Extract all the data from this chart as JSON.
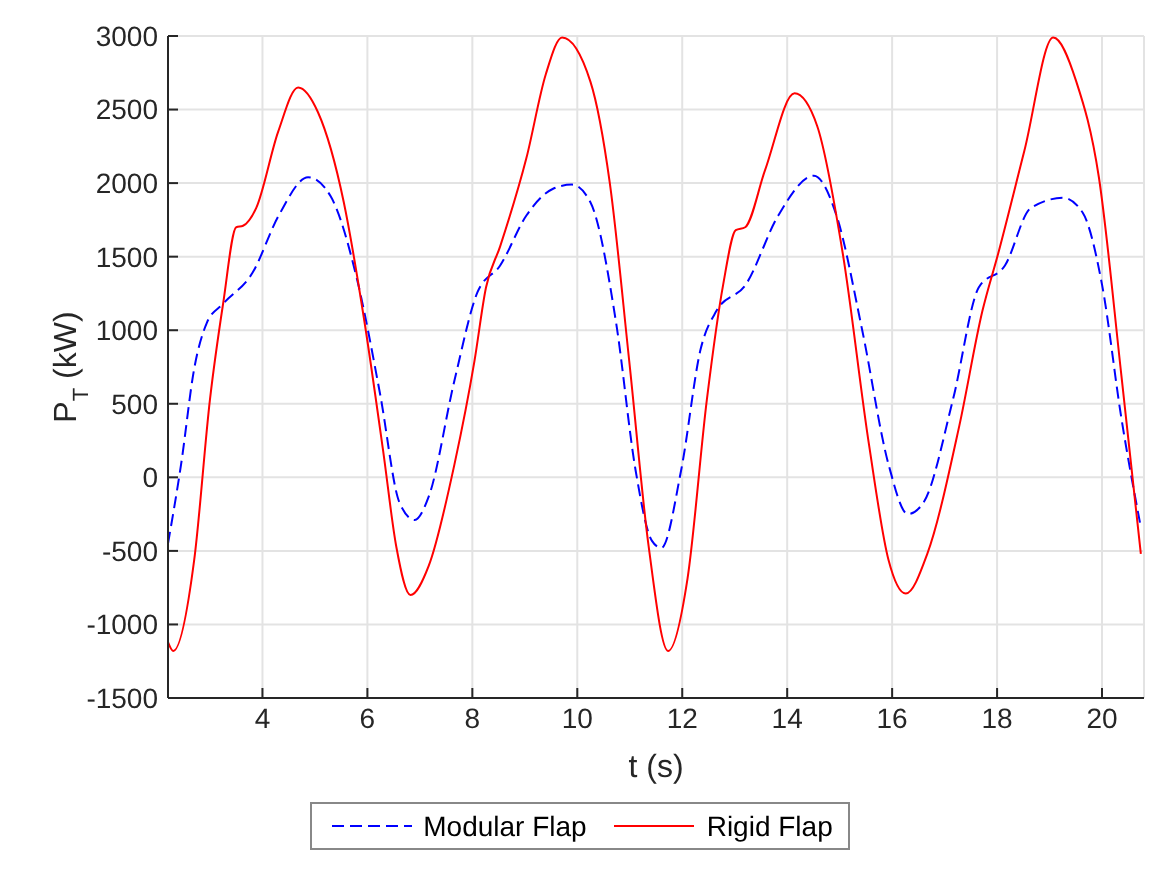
{
  "chart_data": {
    "type": "line",
    "xlabel": "t (s)",
    "ylabel": "P$_{T}$ (kW)",
    "xlim": [
      2.2,
      20.8
    ],
    "xticks": [
      4,
      6,
      8,
      10,
      12,
      14,
      16,
      18,
      20
    ],
    "ylim": [
      -1500,
      3000
    ],
    "yticks": [
      -1500,
      -1000,
      -500,
      0,
      500,
      1000,
      1500,
      2000,
      2500,
      3000
    ],
    "grid": true,
    "legend": "bottom",
    "marker": "none",
    "series": [
      {
        "name": "Modular Flap",
        "color": "#0000ff",
        "line_style": "dashed",
        "x": [
          2.2,
          2.45,
          2.7,
          2.94,
          3.25,
          3.81,
          4.31,
          4.87,
          5.3,
          5.8,
          6.24,
          6.61,
          6.9,
          7.17,
          7.66,
          8.1,
          8.53,
          9.03,
          9.53,
          9.9,
          10.25,
          10.74,
          11.11,
          11.42,
          11.6,
          11.98,
          12.35,
          12.65,
          13.21,
          13.83,
          14.51,
          14.94,
          15.43,
          15.93,
          16.3,
          16.6,
          17.16,
          17.65,
          18.15,
          18.64,
          19.26,
          19.63,
          20.0,
          20.37,
          20.74
        ],
        "values": [
          -450,
          90,
          740,
          1050,
          1180,
          1390,
          1780,
          2040,
          1910,
          1350,
          570,
          -170,
          -290,
          -130,
          660,
          1260,
          1440,
          1780,
          1960,
          1990,
          1870,
          1050,
          50,
          -430,
          -480,
          50,
          870,
          1130,
          1310,
          1780,
          2050,
          1780,
          1000,
          90,
          -250,
          -170,
          530,
          1290,
          1440,
          1830,
          1900,
          1800,
          1310,
          400,
          -340
        ]
      },
      {
        "name": "Rigid Flap",
        "color": "#ff0000",
        "line_style": "solid",
        "x": [
          2.2,
          2.3,
          2.7,
          3.0,
          3.25,
          3.5,
          3.63,
          3.88,
          4.3,
          4.68,
          5.06,
          5.55,
          5.93,
          6.3,
          6.55,
          6.82,
          7.17,
          7.66,
          8.04,
          8.26,
          8.53,
          9.03,
          9.4,
          9.71,
          10.25,
          10.62,
          10.99,
          11.36,
          11.73,
          12.1,
          12.47,
          12.78,
          13.02,
          13.2,
          13.58,
          14.14,
          14.57,
          15.06,
          15.56,
          15.93,
          16.26,
          16.67,
          17.28,
          17.72,
          18.02,
          18.52,
          19.07,
          19.51,
          19.94,
          20.37,
          20.74
        ],
        "values": [
          -1120,
          -1180,
          -560,
          530,
          1180,
          1700,
          1710,
          1830,
          2350,
          2650,
          2480,
          1870,
          1090,
          180,
          -470,
          -800,
          -600,
          90,
          790,
          1290,
          1570,
          2170,
          2740,
          2990,
          2690,
          2000,
          790,
          -470,
          -1180,
          -690,
          530,
          1310,
          1680,
          1700,
          2090,
          2610,
          2390,
          1520,
          220,
          -560,
          -790,
          -520,
          350,
          1130,
          1520,
          2220,
          2990,
          2690,
          2040,
          690,
          -520
        ]
      }
    ]
  }
}
